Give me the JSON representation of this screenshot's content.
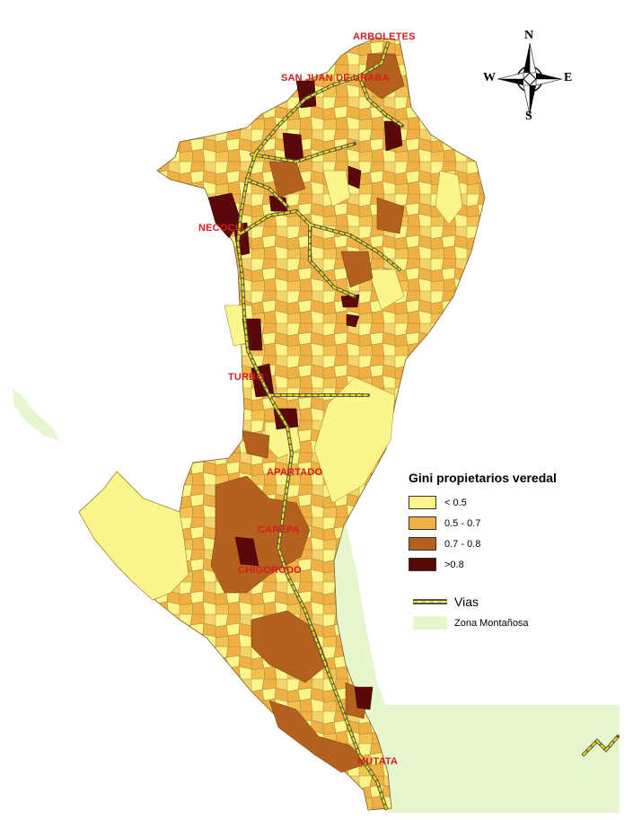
{
  "towns": [
    {
      "id": "arboletes",
      "label": "ARBOLETES"
    },
    {
      "id": "san-juan",
      "label": "SAN JUAN DE URABA"
    },
    {
      "id": "necocli",
      "label": "NECOCLI"
    },
    {
      "id": "turbo",
      "label": "TURBO"
    },
    {
      "id": "apartado",
      "label": "APARTADO"
    },
    {
      "id": "carepa",
      "label": "CAREPA"
    },
    {
      "id": "chigorodo",
      "label": "CHIGORODO"
    },
    {
      "id": "mutata",
      "label": "MUTATA"
    }
  ],
  "compass": {
    "n": "N",
    "s": "S",
    "e": "E",
    "w": "W"
  },
  "legend": {
    "title": "Gini propietarios veredal",
    "classes": [
      {
        "label": "< 0.5",
        "color": "#fbf58a"
      },
      {
        "label": "0.5 -  0.7",
        "color": "#efb143"
      },
      {
        "label": "0.7 - 0.8",
        "color": "#b4601f"
      },
      {
        "label": ">0.8",
        "color": "#5a0808"
      }
    ],
    "vias_label": "Vias",
    "zona_label": "Zona Montañosa"
  },
  "colors": {
    "road": "#f2e400",
    "zona_montanosa": "#e6f7cf",
    "town_label": "#d61e1e"
  }
}
